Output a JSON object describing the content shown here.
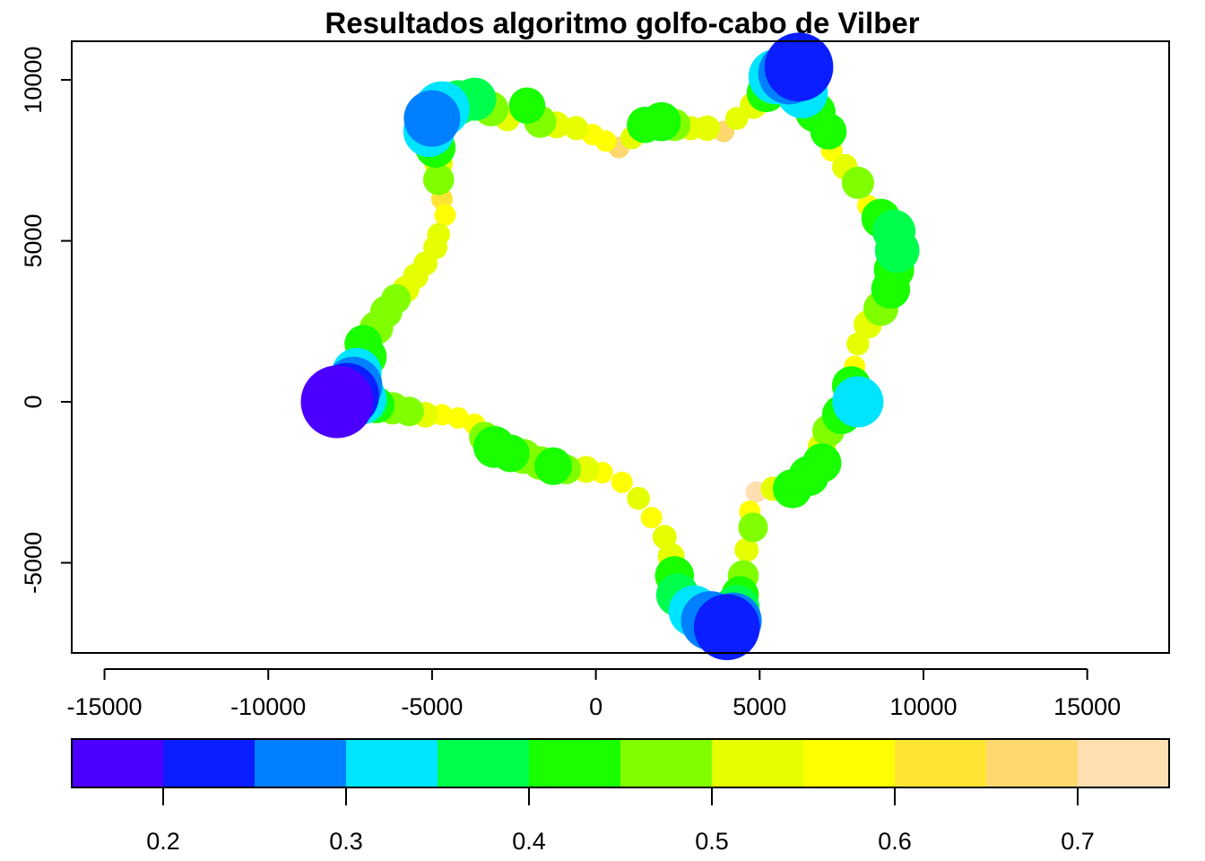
{
  "chart_data": {
    "type": "scatter",
    "title": "Resultados algoritmo golfo-cabo de Vilber",
    "xlim": [
      -16000,
      17500
    ],
    "ylim": [
      -7800,
      11200
    ],
    "x_ticks": [
      -15000,
      -10000,
      -5000,
      0,
      5000,
      10000,
      15000
    ],
    "x_tick_labels": [
      "-15000",
      "-10000",
      "-5000",
      "0",
      "5000",
      "10000",
      "15000"
    ],
    "y_ticks": [
      -5000,
      0,
      5000,
      10000
    ],
    "y_tick_labels": [
      "-5000",
      "0",
      "5000",
      "10000"
    ],
    "point_encoding": "color and size by value (lower value = larger, bluer point)",
    "colorbar": {
      "range": [
        0.15,
        0.75
      ],
      "breaks": [
        0.15,
        0.2,
        0.25,
        0.3,
        0.35,
        0.4,
        0.45,
        0.5,
        0.55,
        0.6,
        0.65,
        0.7,
        0.75
      ],
      "colors": [
        "#4B00FF",
        "#0A1EFF",
        "#0080FF",
        "#00E5FF",
        "#00FF4C",
        "#19FF00",
        "#80FF00",
        "#E5FF00",
        "#FFFF00",
        "#FFE533",
        "#FDD86F",
        "#FFDFB2"
      ],
      "ticks": [
        0.2,
        0.3,
        0.4,
        0.5,
        0.6,
        0.7
      ],
      "tick_labels": [
        "0.2",
        "0.3",
        "0.4",
        "0.5",
        "0.6",
        "0.7"
      ]
    },
    "points": [
      {
        "x": -7900,
        "y": 0,
        "v": 0.17
      },
      {
        "x": -7600,
        "y": 200,
        "v": 0.23
      },
      {
        "x": -7400,
        "y": 500,
        "v": 0.28
      },
      {
        "x": -7200,
        "y": 100,
        "v": 0.32
      },
      {
        "x": -7300,
        "y": 900,
        "v": 0.34
      },
      {
        "x": -7000,
        "y": 1400,
        "v": 0.41
      },
      {
        "x": -7100,
        "y": 1800,
        "v": 0.43
      },
      {
        "x": -6700,
        "y": 2300,
        "v": 0.46
      },
      {
        "x": -6400,
        "y": 2800,
        "v": 0.47
      },
      {
        "x": -6100,
        "y": 3200,
        "v": 0.49
      },
      {
        "x": -5800,
        "y": 3500,
        "v": 0.51
      },
      {
        "x": -5500,
        "y": 3900,
        "v": 0.52
      },
      {
        "x": -5200,
        "y": 4300,
        "v": 0.53
      },
      {
        "x": -4900,
        "y": 4800,
        "v": 0.53
      },
      {
        "x": -4800,
        "y": 5200,
        "v": 0.54
      },
      {
        "x": -4600,
        "y": 5800,
        "v": 0.56
      },
      {
        "x": -4700,
        "y": 6300,
        "v": 0.6
      },
      {
        "x": -4800,
        "y": 6900,
        "v": 0.48
      },
      {
        "x": -4800,
        "y": 7400,
        "v": 0.5
      },
      {
        "x": -4900,
        "y": 7900,
        "v": 0.41
      },
      {
        "x": -5100,
        "y": 8400,
        "v": 0.33
      },
      {
        "x": -5000,
        "y": 8800,
        "v": 0.29
      },
      {
        "x": -4700,
        "y": 9100,
        "v": 0.3
      },
      {
        "x": -4200,
        "y": 9300,
        "v": 0.38
      },
      {
        "x": -3700,
        "y": 9400,
        "v": 0.39
      },
      {
        "x": -3200,
        "y": 9100,
        "v": 0.45
      },
      {
        "x": -2700,
        "y": 8800,
        "v": 0.52
      },
      {
        "x": -2100,
        "y": 9200,
        "v": 0.44
      },
      {
        "x": -1700,
        "y": 8700,
        "v": 0.47
      },
      {
        "x": -1200,
        "y": 8600,
        "v": 0.51
      },
      {
        "x": -600,
        "y": 8500,
        "v": 0.53
      },
      {
        "x": -100,
        "y": 8300,
        "v": 0.55
      },
      {
        "x": 300,
        "y": 8100,
        "v": 0.58
      },
      {
        "x": 700,
        "y": 7900,
        "v": 0.66
      },
      {
        "x": 1100,
        "y": 8200,
        "v": 0.54
      },
      {
        "x": 1500,
        "y": 8600,
        "v": 0.44
      },
      {
        "x": 2000,
        "y": 8700,
        "v": 0.42
      },
      {
        "x": 2400,
        "y": 8600,
        "v": 0.47
      },
      {
        "x": 2900,
        "y": 8500,
        "v": 0.53
      },
      {
        "x": 3400,
        "y": 8500,
        "v": 0.52
      },
      {
        "x": 3900,
        "y": 8400,
        "v": 0.69
      },
      {
        "x": 4300,
        "y": 8800,
        "v": 0.54
      },
      {
        "x": 4800,
        "y": 9200,
        "v": 0.51
      },
      {
        "x": 5200,
        "y": 9600,
        "v": 0.42
      },
      {
        "x": 5500,
        "y": 10100,
        "v": 0.3
      },
      {
        "x": 5900,
        "y": 10200,
        "v": 0.25
      },
      {
        "x": 6200,
        "y": 10400,
        "v": 0.2
      },
      {
        "x": 6300,
        "y": 9600,
        "v": 0.33
      },
      {
        "x": 6700,
        "y": 9000,
        "v": 0.41
      },
      {
        "x": 7100,
        "y": 8400,
        "v": 0.44
      },
      {
        "x": 7200,
        "y": 7800,
        "v": 0.55
      },
      {
        "x": 7600,
        "y": 7300,
        "v": 0.52
      },
      {
        "x": 8000,
        "y": 6800,
        "v": 0.47
      },
      {
        "x": 8300,
        "y": 6100,
        "v": 0.55
      },
      {
        "x": 8700,
        "y": 5700,
        "v": 0.42
      },
      {
        "x": 9100,
        "y": 5300,
        "v": 0.39
      },
      {
        "x": 9200,
        "y": 4700,
        "v": 0.38
      },
      {
        "x": 9100,
        "y": 4100,
        "v": 0.41
      },
      {
        "x": 9000,
        "y": 3500,
        "v": 0.42
      },
      {
        "x": 8700,
        "y": 2900,
        "v": 0.45
      },
      {
        "x": 8300,
        "y": 2400,
        "v": 0.5
      },
      {
        "x": 8000,
        "y": 1800,
        "v": 0.54
      },
      {
        "x": 7900,
        "y": 1100,
        "v": 0.55
      },
      {
        "x": 7800,
        "y": 500,
        "v": 0.42
      },
      {
        "x": 8000,
        "y": 0,
        "v": 0.33
      },
      {
        "x": 7500,
        "y": -400,
        "v": 0.42
      },
      {
        "x": 7100,
        "y": -900,
        "v": 0.47
      },
      {
        "x": 6900,
        "y": -1400,
        "v": 0.5
      },
      {
        "x": 6900,
        "y": -1900,
        "v": 0.42
      },
      {
        "x": 6500,
        "y": -2300,
        "v": 0.41
      },
      {
        "x": 6000,
        "y": -2700,
        "v": 0.42
      },
      {
        "x": 5400,
        "y": -2700,
        "v": 0.53
      },
      {
        "x": 4900,
        "y": -2800,
        "v": 0.73
      },
      {
        "x": 4700,
        "y": -3400,
        "v": 0.56
      },
      {
        "x": 4800,
        "y": -3900,
        "v": 0.49
      },
      {
        "x": 4600,
        "y": -4600,
        "v": 0.53
      },
      {
        "x": 4500,
        "y": -5400,
        "v": 0.48
      },
      {
        "x": 4400,
        "y": -6000,
        "v": 0.43
      },
      {
        "x": 4300,
        "y": -6400,
        "v": 0.37
      },
      {
        "x": 4200,
        "y": -6800,
        "v": 0.29
      },
      {
        "x": 4000,
        "y": -7000,
        "v": 0.22
      },
      {
        "x": 3500,
        "y": -6800,
        "v": 0.27
      },
      {
        "x": 3000,
        "y": -6500,
        "v": 0.33
      },
      {
        "x": 2500,
        "y": -6000,
        "v": 0.39
      },
      {
        "x": 2400,
        "y": -5400,
        "v": 0.42
      },
      {
        "x": 2300,
        "y": -4800,
        "v": 0.51
      },
      {
        "x": 2100,
        "y": -4200,
        "v": 0.53
      },
      {
        "x": 1700,
        "y": -3600,
        "v": 0.55
      },
      {
        "x": 1300,
        "y": -3000,
        "v": 0.54
      },
      {
        "x": 800,
        "y": -2500,
        "v": 0.56
      },
      {
        "x": 200,
        "y": -2200,
        "v": 0.55
      },
      {
        "x": -300,
        "y": -2100,
        "v": 0.51
      },
      {
        "x": -900,
        "y": -2100,
        "v": 0.49
      },
      {
        "x": -1300,
        "y": -2000,
        "v": 0.43
      },
      {
        "x": -1700,
        "y": -1900,
        "v": 0.46
      },
      {
        "x": -2200,
        "y": -1700,
        "v": 0.45
      },
      {
        "x": -2600,
        "y": -1600,
        "v": 0.43
      },
      {
        "x": -3100,
        "y": -1400,
        "v": 0.4
      },
      {
        "x": -3400,
        "y": -1100,
        "v": 0.48
      },
      {
        "x": -3700,
        "y": -700,
        "v": 0.56
      },
      {
        "x": -4200,
        "y": -500,
        "v": 0.57
      },
      {
        "x": -4700,
        "y": -400,
        "v": 0.56
      },
      {
        "x": -5200,
        "y": -400,
        "v": 0.52
      },
      {
        "x": -5700,
        "y": -300,
        "v": 0.49
      },
      {
        "x": -6200,
        "y": -200,
        "v": 0.47
      },
      {
        "x": -6700,
        "y": -100,
        "v": 0.44
      },
      {
        "x": -7000,
        "y": 0,
        "v": 0.39
      }
    ]
  }
}
